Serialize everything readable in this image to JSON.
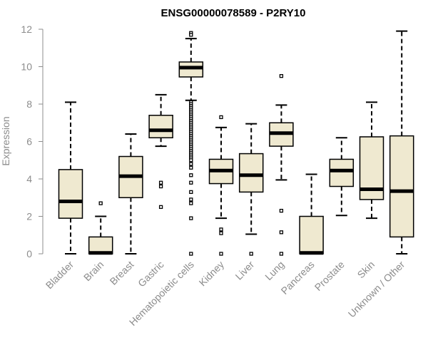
{
  "chart_data": {
    "type": "boxplot",
    "title": "ENSG00000078589 - P2RY10",
    "xlabel": "",
    "ylabel": "Expression",
    "ylim": [
      0,
      12
    ],
    "yticks": [
      0,
      2,
      4,
      6,
      8,
      10,
      12
    ],
    "categories": [
      "Bladder",
      "Brain",
      "Breast",
      "Gastric",
      "Hematopoietic cells",
      "Kidney",
      "Liver",
      "Lung",
      "Pancreas",
      "Prostate",
      "Skin",
      "Unknown / Other"
    ],
    "boxes": [
      {
        "name": "Bladder",
        "whisker_low": 0.0,
        "q1": 1.9,
        "median": 2.8,
        "q3": 4.5,
        "whisker_high": 8.1,
        "outliers": []
      },
      {
        "name": "Brain",
        "whisker_low": 0.0,
        "q1": 0.0,
        "median": 0.05,
        "q3": 0.9,
        "whisker_high": 2.0,
        "outliers": [
          2.7
        ]
      },
      {
        "name": "Breast",
        "whisker_low": 0.0,
        "q1": 3.0,
        "median": 4.15,
        "q3": 5.2,
        "whisker_high": 6.4,
        "outliers": []
      },
      {
        "name": "Gastric",
        "whisker_low": 5.75,
        "q1": 6.2,
        "median": 6.6,
        "q3": 7.4,
        "whisker_high": 8.5,
        "outliers": [
          3.8,
          3.6,
          2.5
        ]
      },
      {
        "name": "Hematopoietic cells",
        "whisker_low": 8.2,
        "q1": 9.45,
        "median": 9.95,
        "q3": 10.25,
        "whisker_high": 11.5,
        "outliers": [
          11.8,
          11.7,
          8.1,
          8.0,
          7.9,
          7.8,
          7.7,
          7.6,
          7.5,
          7.4,
          7.3,
          7.2,
          7.1,
          7.0,
          6.9,
          6.8,
          6.7,
          6.6,
          6.5,
          6.4,
          6.3,
          6.2,
          6.1,
          6.0,
          5.9,
          5.8,
          5.7,
          5.6,
          5.5,
          5.4,
          5.3,
          5.2,
          5.1,
          5.0,
          4.8,
          4.6,
          4.2,
          3.8,
          3.3,
          2.9,
          2.7,
          1.9,
          0.0
        ]
      },
      {
        "name": "Kidney",
        "whisker_low": 1.9,
        "q1": 3.75,
        "median": 4.45,
        "q3": 5.05,
        "whisker_high": 6.75,
        "outliers": [
          7.3,
          1.3,
          1.1,
          0.0
        ]
      },
      {
        "name": "Liver",
        "whisker_low": 1.05,
        "q1": 3.3,
        "median": 4.2,
        "q3": 5.35,
        "whisker_high": 6.95,
        "outliers": [
          0.0
        ]
      },
      {
        "name": "Lung",
        "whisker_low": 3.95,
        "q1": 5.75,
        "median": 6.45,
        "q3": 7.0,
        "whisker_high": 7.95,
        "outliers": [
          9.5,
          2.3,
          1.15,
          0.0
        ]
      },
      {
        "name": "Pancreas",
        "whisker_low": 0.0,
        "q1": 0.0,
        "median": 0.05,
        "q3": 2.0,
        "whisker_high": 4.25,
        "outliers": []
      },
      {
        "name": "Prostate",
        "whisker_low": 2.05,
        "q1": 3.6,
        "median": 4.45,
        "q3": 5.05,
        "whisker_high": 6.2,
        "outliers": []
      },
      {
        "name": "Skin",
        "whisker_low": 1.9,
        "q1": 2.9,
        "median": 3.45,
        "q3": 6.25,
        "whisker_high": 8.1,
        "outliers": []
      },
      {
        "name": "Unknown / Other",
        "whisker_low": 0.0,
        "q1": 0.9,
        "median": 3.35,
        "q3": 6.3,
        "whisker_high": 11.9,
        "outliers": []
      }
    ],
    "colors": {
      "box_fill": "#efe9d0",
      "box_stroke": "#000000",
      "median": "#000000",
      "axis": "#8c8c8c",
      "text": "#8c8c8c",
      "title": "#000000"
    }
  }
}
